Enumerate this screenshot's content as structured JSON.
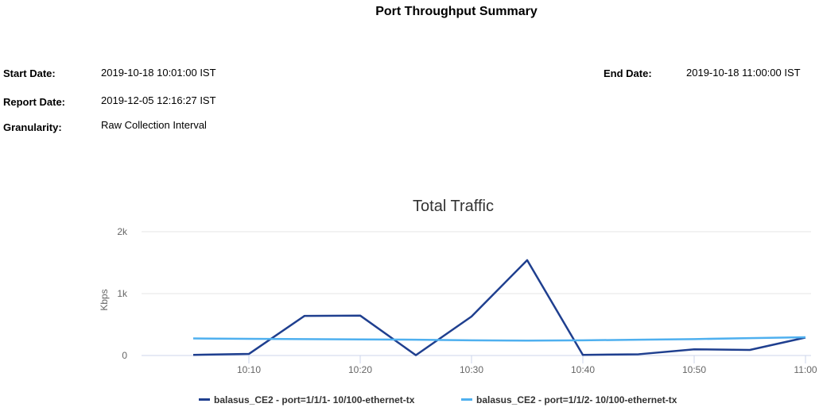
{
  "report": {
    "title": "Port Throughput Summary",
    "start_date_label": "Start Date:",
    "start_date": "2019-10-18 10:01:00 IST",
    "end_date_label": "End Date:",
    "end_date": "2019-10-18 11:00:00 IST",
    "report_date_label": "Report Date:",
    "report_date": "2019-12-05 12:16:27 IST",
    "granularity_label": "Granularity:",
    "granularity": "Raw Collection Interval"
  },
  "chart_data": {
    "type": "line",
    "title": "Total Traffic",
    "xlabel": "",
    "ylabel": "Kbps",
    "ylim": [
      0,
      2000
    ],
    "yticks": [
      {
        "v": 0,
        "label": "0"
      },
      {
        "v": 1000,
        "label": "1k"
      },
      {
        "v": 2000,
        "label": "2k"
      }
    ],
    "xticks": [
      {
        "m": 10,
        "label": "10:10"
      },
      {
        "m": 20,
        "label": "10:20"
      },
      {
        "m": 30,
        "label": "10:30"
      },
      {
        "m": 40,
        "label": "10:40"
      },
      {
        "m": 50,
        "label": "10:50"
      },
      {
        "m": 60,
        "label": "11:00"
      }
    ],
    "x_minutes_after_10": [
      5,
      10,
      15,
      20,
      25,
      30,
      35,
      40,
      45,
      50,
      55,
      60
    ],
    "legend_position": "bottom",
    "grid": true,
    "series": [
      {
        "name": "balasus_CE2 - port=1/1/1- 10/100-ethernet-tx",
        "color": "#1f3f8f",
        "values": [
          10,
          25,
          640,
          645,
          5,
          630,
          1540,
          10,
          20,
          100,
          90,
          290
        ]
      },
      {
        "name": "balasus_CE2 - port=1/1/2- 10/100-ethernet-tx",
        "color": "#4fb0ef",
        "values": [
          275,
          270,
          265,
          260,
          255,
          245,
          240,
          245,
          255,
          265,
          280,
          295
        ]
      }
    ]
  }
}
